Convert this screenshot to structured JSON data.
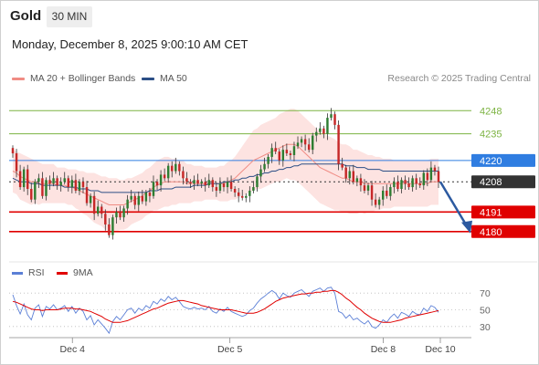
{
  "header": {
    "instrument": "Gold",
    "interval": "30 MIN",
    "datetime": "Monday, December 8, 2025 9:00:10 AM CET"
  },
  "legend": {
    "bb_label": "MA 20 + Bollinger Bands",
    "bb_color": "#f08c84",
    "ma50_label": "MA 50",
    "ma50_color": "#2c4f86",
    "source": "Research © 2025 Trading Central"
  },
  "rsi_legend": {
    "rsi_label": "RSI",
    "rsi_color": "#5b7fd6",
    "ma_label": "9MA",
    "ma_color": "#e00000"
  },
  "chart_data": {
    "type": "candlestick",
    "y_range": [
      4165,
      4262
    ],
    "x_labels": [
      "Dec 4",
      "Dec 5",
      "Dec 8",
      "Dec 10"
    ],
    "levels": [
      {
        "value": 4248,
        "label": "4248",
        "kind": "resistance",
        "color": "#7cb342"
      },
      {
        "value": 4235,
        "label": "4235",
        "kind": "resistance",
        "color": "#7cb342"
      },
      {
        "value": 4220,
        "label": "4220",
        "kind": "pivot",
        "color": "#2f7de1"
      },
      {
        "value": 4208,
        "label": "4208",
        "kind": "last_price",
        "color": "#333333"
      },
      {
        "value": 4191,
        "label": "4191",
        "kind": "support",
        "color": "#e00000"
      },
      {
        "value": 4180,
        "label": "4180",
        "kind": "support",
        "color": "#e00000"
      }
    ],
    "closes": [
      4224,
      4214,
      4205,
      4215,
      4204,
      4198,
      4208,
      4210,
      4200,
      4209,
      4207,
      4210,
      4206,
      4208,
      4210,
      4205,
      4209,
      4203,
      4208,
      4205,
      4196,
      4200,
      4190,
      4194,
      4190,
      4184,
      4178,
      4188,
      4191,
      4188,
      4193,
      4198,
      4200,
      4195,
      4200,
      4197,
      4202,
      4200,
      4208,
      4206,
      4212,
      4210,
      4217,
      4214,
      4218,
      4214,
      4210,
      4208,
      4207,
      4209,
      4207,
      4208,
      4206,
      4209,
      4205,
      4203,
      4207,
      4205,
      4208,
      4204,
      4202,
      4200,
      4199,
      4200,
      4203,
      4205,
      4211,
      4215,
      4218,
      4222,
      4227,
      4225,
      4220,
      4226,
      4224,
      4223,
      4228,
      4230,
      4232,
      4229,
      4226,
      4234,
      4236,
      4238,
      4235,
      4244,
      4246,
      4240,
      4218,
      4216,
      4210,
      4214,
      4208,
      4210,
      4206,
      4203,
      4206,
      4198,
      4195,
      4198,
      4203,
      4200,
      4205,
      4208,
      4204,
      4209,
      4207,
      4205,
      4210,
      4207,
      4206,
      4213,
      4209,
      4216,
      4214,
      4208
    ],
    "ma20": [
      4214,
      4213,
      4211,
      4210,
      4209,
      4208,
      4208,
      4207,
      4207,
      4207,
      4207,
      4207,
      4206,
      4206,
      4206,
      4205,
      4205,
      4204,
      4203,
      4202,
      4201,
      4200,
      4199,
      4198,
      4197,
      4196,
      4195,
      4195,
      4195,
      4195,
      4195,
      4196,
      4197,
      4198,
      4199,
      4200,
      4202,
      4203,
      4205,
      4206,
      4207,
      4208,
      4208,
      4208,
      4208,
      4208,
      4208,
      4207,
      4207,
      4207,
      4207,
      4207,
      4207,
      4207,
      4207,
      4207,
      4207,
      4207,
      4208,
      4209,
      4210,
      4212,
      4214,
      4216,
      4218,
      4220,
      4221,
      4222,
      4223,
      4224,
      4225,
      4226,
      4227,
      4228,
      4229,
      4229,
      4229,
      4228,
      4226,
      4224,
      4222,
      4220,
      4218,
      4216,
      4215,
      4214,
      4213,
      4212,
      4211,
      4210,
      4210,
      4209,
      4208,
      4208,
      4208,
      4207,
      4207,
      4207,
      4207,
      4207,
      4207,
      4207,
      4207,
      4207,
      4207,
      4207,
      4207,
      4207,
      4207,
      4207,
      4207,
      4207,
      4207,
      4208,
      4208,
      4208
    ],
    "ma50": [
      4210,
      4209,
      4208,
      4208,
      4208,
      4207,
      4207,
      4207,
      4206,
      4206,
      4206,
      4206,
      4206,
      4206,
      4205,
      4205,
      4205,
      4205,
      4204,
      4204,
      4204,
      4203,
      4203,
      4203,
      4202,
      4202,
      4202,
      4202,
      4202,
      4202,
      4202,
      4202,
      4202,
      4202,
      4202,
      4202,
      4202,
      4203,
      4203,
      4203,
      4204,
      4204,
      4204,
      4204,
      4205,
      4205,
      4205,
      4205,
      4205,
      4206,
      4206,
      4206,
      4206,
      4207,
      4207,
      4207,
      4207,
      4208,
      4208,
      4208,
      4209,
      4209,
      4210,
      4210,
      4211,
      4211,
      4212,
      4212,
      4213,
      4213,
      4214,
      4214,
      4215,
      4215,
      4216,
      4216,
      4217,
      4217,
      4218,
      4218,
      4218,
      4218,
      4218,
      4218,
      4218,
      4218,
      4218,
      4218,
      4218,
      4218,
      4217,
      4217,
      4217,
      4216,
      4216,
      4216,
      4215,
      4215,
      4215,
      4215,
      4214,
      4214,
      4214,
      4214,
      4214,
      4214,
      4214,
      4214,
      4214,
      4214,
      4214,
      4214,
      4214,
      4214,
      4214,
      4214
    ],
    "bb_halfwidth": [
      12,
      12,
      13,
      13,
      13,
      13,
      12,
      12,
      11,
      11,
      11,
      11,
      10,
      10,
      10,
      10,
      10,
      11,
      11,
      12,
      12,
      13,
      14,
      14,
      14,
      15,
      15,
      15,
      15,
      14,
      14,
      14,
      13,
      13,
      13,
      13,
      13,
      13,
      13,
      14,
      14,
      14,
      14,
      13,
      13,
      12,
      12,
      11,
      11,
      10,
      10,
      10,
      9,
      9,
      9,
      9,
      10,
      10,
      11,
      11,
      12,
      13,
      14,
      15,
      16,
      17,
      17,
      18,
      18,
      18,
      18,
      18,
      19,
      19,
      19,
      20,
      20,
      20,
      20,
      20,
      20,
      20,
      20,
      20,
      20,
      20,
      20,
      20,
      19,
      19,
      19,
      19,
      18,
      18,
      17,
      17,
      16,
      16,
      15,
      15,
      14,
      14,
      14,
      13,
      13,
      13,
      13,
      13,
      13,
      13,
      13,
      13,
      13,
      13,
      13,
      13
    ],
    "projection": {
      "from": 4208,
      "to": 4180
    },
    "rsi": {
      "y_range": [
        20,
        80
      ],
      "ticks": [
        70,
        50,
        30
      ],
      "rsi_values": [
        68,
        55,
        45,
        57,
        44,
        38,
        52,
        56,
        42,
        54,
        51,
        56,
        50,
        52,
        55,
        48,
        54,
        46,
        52,
        48,
        38,
        43,
        32,
        38,
        33,
        28,
        22,
        36,
        42,
        38,
        44,
        50,
        52,
        46,
        52,
        49,
        55,
        52,
        60,
        57,
        63,
        60,
        66,
        62,
        65,
        60,
        54,
        52,
        51,
        53,
        51,
        52,
        50,
        54,
        48,
        46,
        51,
        48,
        53,
        48,
        46,
        44,
        42,
        44,
        49,
        52,
        58,
        63,
        66,
        70,
        73,
        70,
        63,
        70,
        67,
        65,
        70,
        72,
        74,
        70,
        66,
        72,
        74,
        76,
        72,
        76,
        77,
        70,
        48,
        46,
        40,
        44,
        38,
        40,
        36,
        33,
        37,
        30,
        28,
        32,
        38,
        35,
        41,
        45,
        40,
        47,
        45,
        42,
        48,
        45,
        44,
        52,
        48,
        55,
        53,
        47
      ],
      "ma9_values": [
        60,
        59,
        57,
        55,
        53,
        51,
        50,
        50,
        49,
        50,
        50,
        50,
        50,
        51,
        52,
        52,
        52,
        51,
        51,
        50,
        49,
        48,
        46,
        44,
        42,
        39,
        37,
        35,
        35,
        35,
        36,
        37,
        39,
        41,
        43,
        45,
        47,
        49,
        51,
        52,
        54,
        56,
        58,
        59,
        60,
        61,
        61,
        60,
        59,
        58,
        57,
        55,
        54,
        53,
        52,
        51,
        50,
        50,
        50,
        50,
        49,
        48,
        47,
        46,
        46,
        46,
        47,
        49,
        51,
        54,
        57,
        60,
        62,
        64,
        65,
        66,
        67,
        68,
        69,
        69,
        70,
        70,
        71,
        71,
        72,
        72,
        73,
        73,
        71,
        68,
        64,
        61,
        57,
        53,
        50,
        46,
        43,
        40,
        38,
        36,
        35,
        35,
        35,
        36,
        37,
        38,
        40,
        41,
        42,
        43,
        44,
        45,
        46,
        47,
        48,
        49
      ]
    }
  }
}
